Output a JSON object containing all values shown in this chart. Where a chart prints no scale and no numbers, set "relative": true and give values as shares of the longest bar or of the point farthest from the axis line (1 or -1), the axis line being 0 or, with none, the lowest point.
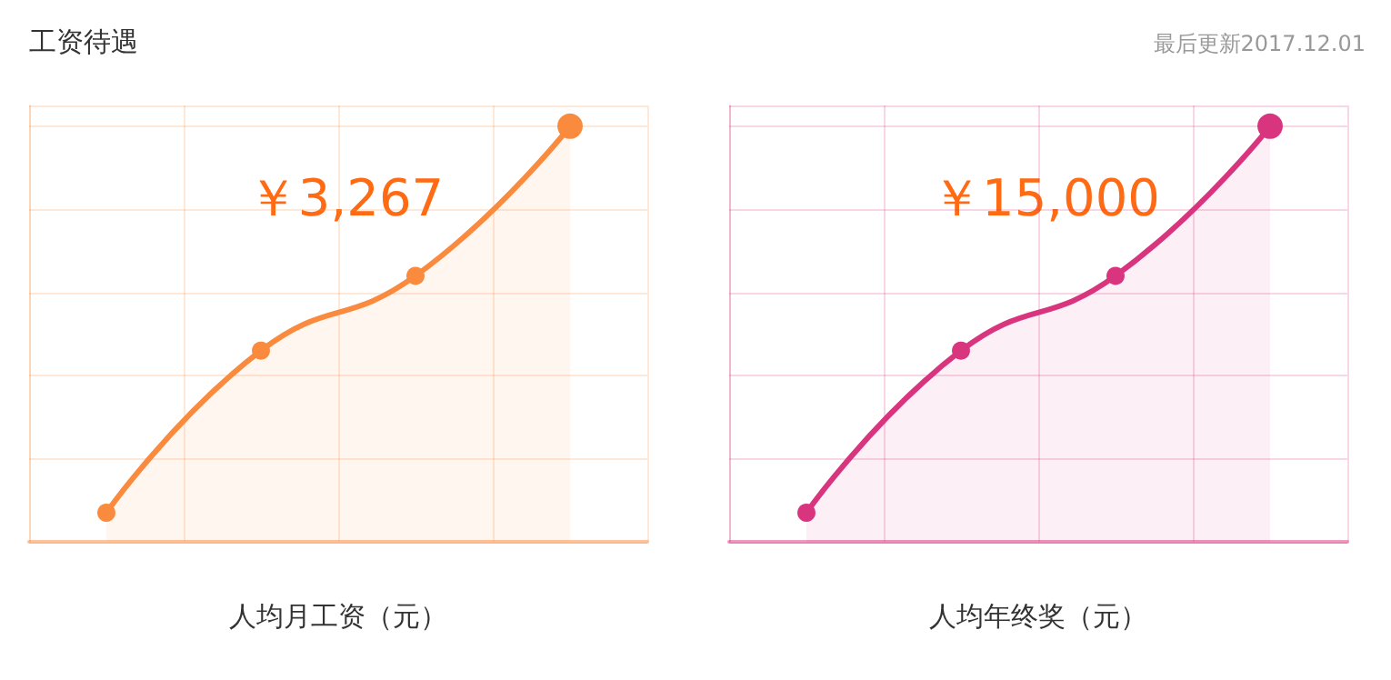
{
  "chart_data": [
    {
      "type": "area",
      "title": "工资待遇",
      "xlabel": "人均月工资（元）",
      "annotations": [
        "￥3,267"
      ],
      "relative": true,
      "categories": [
        null,
        null,
        null,
        null
      ],
      "grid": true,
      "marker": "circle",
      "line_style": "solid",
      "series": [
        {
          "color": "#f98a3e",
          "values": [
            0.07,
            0.46,
            0.64,
            1
          ]
        }
      ]
    },
    {
      "type": "area",
      "subtitle": "最后更新2017.12.01",
      "xlabel": "人均年终奖（元）",
      "annotations": [
        "￥15,000"
      ],
      "relative": true,
      "categories": [
        null,
        null,
        null,
        null
      ],
      "grid": true,
      "marker": "circle",
      "line_style": "solid",
      "series": [
        {
          "color": "#d9357f",
          "values": [
            0.07,
            0.46,
            0.64,
            1
          ]
        }
      ]
    }
  ]
}
